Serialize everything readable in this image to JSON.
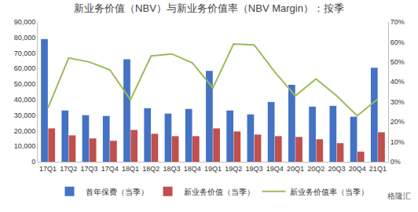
{
  "chart_data": {
    "type": "bar",
    "title": "新业务价值（NBV）与新业务价值率（NBV Margin）：按季",
    "categories": [
      "17Q1",
      "17Q2",
      "17Q3",
      "17Q4",
      "18Q1",
      "18Q2",
      "18Q3",
      "18Q4",
      "19Q1",
      "19Q2",
      "19Q3",
      "19Q4",
      "20Q1",
      "20Q2",
      "20Q3",
      "20Q4",
      "21Q1"
    ],
    "series": [
      {
        "name": "首年保费（当季）",
        "type": "bar",
        "color": "#4472c4",
        "values": [
          79000,
          33000,
          30000,
          29500,
          66000,
          34500,
          31000,
          34000,
          58500,
          33000,
          30500,
          38500,
          49500,
          35500,
          36000,
          29000,
          60500
        ]
      },
      {
        "name": "新业务价值（当季）",
        "type": "bar",
        "color": "#c0504d",
        "values": [
          21500,
          17000,
          15000,
          13500,
          20500,
          18000,
          16500,
          16500,
          21500,
          19500,
          17500,
          16500,
          16000,
          14500,
          12000,
          6500,
          19000
        ]
      },
      {
        "name": "新业务价值率（当季）",
        "type": "line",
        "color": "#9bbb59",
        "axis": "y2",
        "values": [
          27,
          52,
          50,
          46,
          31,
          53,
          54,
          49.5,
          37,
          59,
          58.5,
          45,
          33,
          41.5,
          33,
          23,
          31.5
        ]
      }
    ],
    "ylim": [
      0,
      90000
    ],
    "yticks": [
      0,
      {
        "value": 10000,
        "label": "10,000"
      },
      {
        "value": 20000,
        "label": "20,000"
      },
      {
        "value": 30000,
        "label": "30,000"
      },
      {
        "value": 40000,
        "label": "40,000"
      },
      {
        "value": 50000,
        "label": "50,000"
      },
      {
        "value": 60000,
        "label": "60,000"
      },
      {
        "value": 70000,
        "label": "70,000"
      },
      {
        "value": 80000,
        "label": "80,000"
      },
      {
        "value": 90000,
        "label": "90,000"
      }
    ],
    "y2lim": [
      0,
      70
    ],
    "y2ticks": [
      {
        "value": 0,
        "label": "0%"
      },
      {
        "value": 10,
        "label": "10%"
      },
      {
        "value": 20,
        "label": "20%"
      },
      {
        "value": 30,
        "label": "30%"
      },
      {
        "value": 40,
        "label": "40%"
      },
      {
        "value": 50,
        "label": "50%"
      },
      {
        "value": 60,
        "label": "60%"
      },
      {
        "value": 70,
        "label": "70%"
      }
    ],
    "grid": false,
    "legend": "bottom",
    "annotations": [
      {
        "text": "格隆汇"
      }
    ]
  }
}
